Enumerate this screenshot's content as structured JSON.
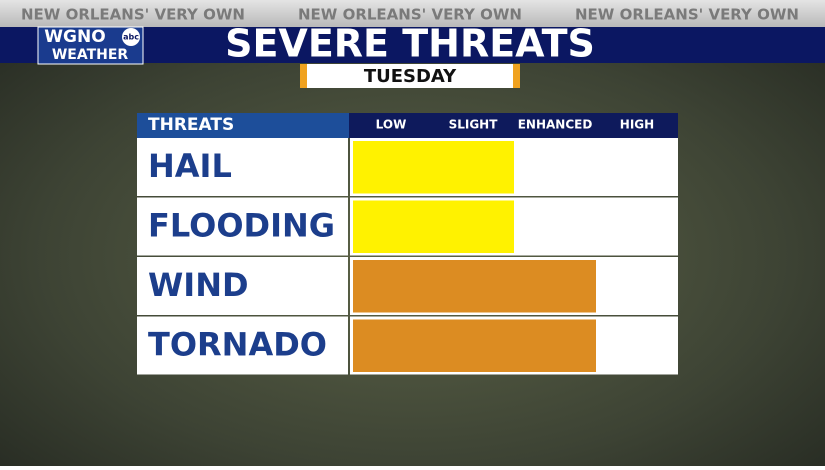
{
  "header": {
    "banner": [
      "NEW ORLEANS' VERY OWN",
      "NEW ORLEANS' VERY OWN",
      "NEW ORLEANS' VERY OWN"
    ],
    "logo": "WGNO",
    "logo_badge": "abc",
    "logo_sub": "WEATHER"
  },
  "chart_data": {
    "type": "bar",
    "orientation": "horizontal",
    "title": "SEVERE THREATS",
    "subtitle": "TUESDAY",
    "y_label": "THREATS",
    "categories": [
      "HAIL",
      "FLOODING",
      "WIND",
      "TORNADO"
    ],
    "values": [
      2,
      2,
      3,
      3
    ],
    "colors": [
      "#fff200",
      "#fff200",
      "#dc8c22",
      "#dc8c22"
    ],
    "xlim": [
      0,
      4
    ],
    "xticks": [
      {
        "value": 0.5,
        "label": "LOW"
      },
      {
        "value": 1.5,
        "label": "SLIGHT"
      },
      {
        "value": 2.5,
        "label": "ENHANCED"
      },
      {
        "value": 3.5,
        "label": "HIGH"
      }
    ]
  }
}
